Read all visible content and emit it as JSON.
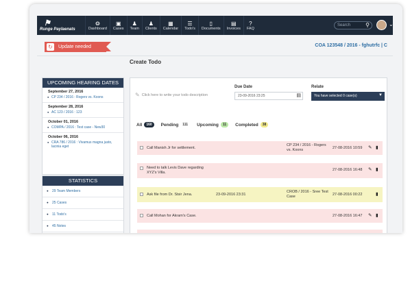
{
  "app": {
    "brand": "Runge Paylaenats"
  },
  "nav": {
    "items": [
      {
        "label": "Dashboard",
        "icon": "chat-bubble-icon",
        "glyph": "⭗"
      },
      {
        "label": "Cases",
        "icon": "briefcase-icon",
        "glyph": "▣"
      },
      {
        "label": "Team",
        "icon": "team-icon",
        "glyph": "♟"
      },
      {
        "label": "Clients",
        "icon": "user-icon",
        "glyph": "♟"
      },
      {
        "label": "Calendar",
        "icon": "calendar-icon",
        "glyph": "▦"
      },
      {
        "label": "Todo's",
        "icon": "checklist-icon",
        "glyph": "☰"
      },
      {
        "label": "Documents",
        "icon": "document-icon",
        "glyph": "▯"
      },
      {
        "label": "Invoices",
        "icon": "invoice-icon",
        "glyph": "▤"
      },
      {
        "label": "FAQ",
        "icon": "question-icon",
        "glyph": "?"
      }
    ],
    "search_placeholder": "Search"
  },
  "header": {
    "update_label": "Update needed",
    "case_ref": "COA 123548 / 2016 - fghutrfc | C"
  },
  "page": {
    "title": "Create Todo"
  },
  "hearing": {
    "title": "UPCOMING HEARING DATES",
    "groups": [
      {
        "date": "September 27, 2016",
        "cases": [
          "CP 234 / 2016 : Rogers vs. Koons"
        ]
      },
      {
        "date": "September 28, 2016",
        "cases": [
          "AC 123 / 2016 : 123"
        ]
      },
      {
        "date": "October 01, 2016",
        "cases": [
          "COMPA / 2016 : Test case - New30"
        ]
      },
      {
        "date": "October 06, 2016",
        "cases": [
          "CRA 786 / 2016 : Vivamus magna justo, lacinia eget"
        ]
      }
    ]
  },
  "stats": {
    "title": "STATISTICS",
    "items": [
      "29 Team Members",
      "25 Cases",
      "11 Todo's",
      "45 Notes"
    ]
  },
  "form": {
    "todo_placeholder": "Click here to write your todo description",
    "due_label": "Due Date",
    "due_value": "23-09-2016 23:25",
    "relate_label": "Relate",
    "relate_value": "You have selected 0 case(s)"
  },
  "tabs": [
    {
      "label": "All",
      "count": "160"
    },
    {
      "label": "Pending",
      "count": "111"
    },
    {
      "label": "Upcoming",
      "count": "11"
    },
    {
      "label": "Completed",
      "count": "38"
    }
  ],
  "todos": [
    {
      "text": "Call Manish Jr for settlement.",
      "due": "",
      "case": "CP 234 / 2016 - Rogers vs. Koons",
      "date": "27-08-2016 10:59",
      "color": "pink"
    },
    {
      "text": "Need to talk Levis Dave regarding XYZ's Villa.",
      "due": "",
      "case": "",
      "date": "27-08-2016 16:48",
      "color": "pink"
    },
    {
      "text": "Ask file from Dr. Stsir Jena.",
      "due": "23-09-2016 23:31",
      "case": "CROB / 2016 - Sree Test Case",
      "date": "27-08-2016 00:22",
      "color": "yellow"
    },
    {
      "text": "Call Mohan for Akram's Case.",
      "due": "",
      "case": "",
      "date": "27-08-2016 16:47",
      "color": "pink"
    }
  ]
}
